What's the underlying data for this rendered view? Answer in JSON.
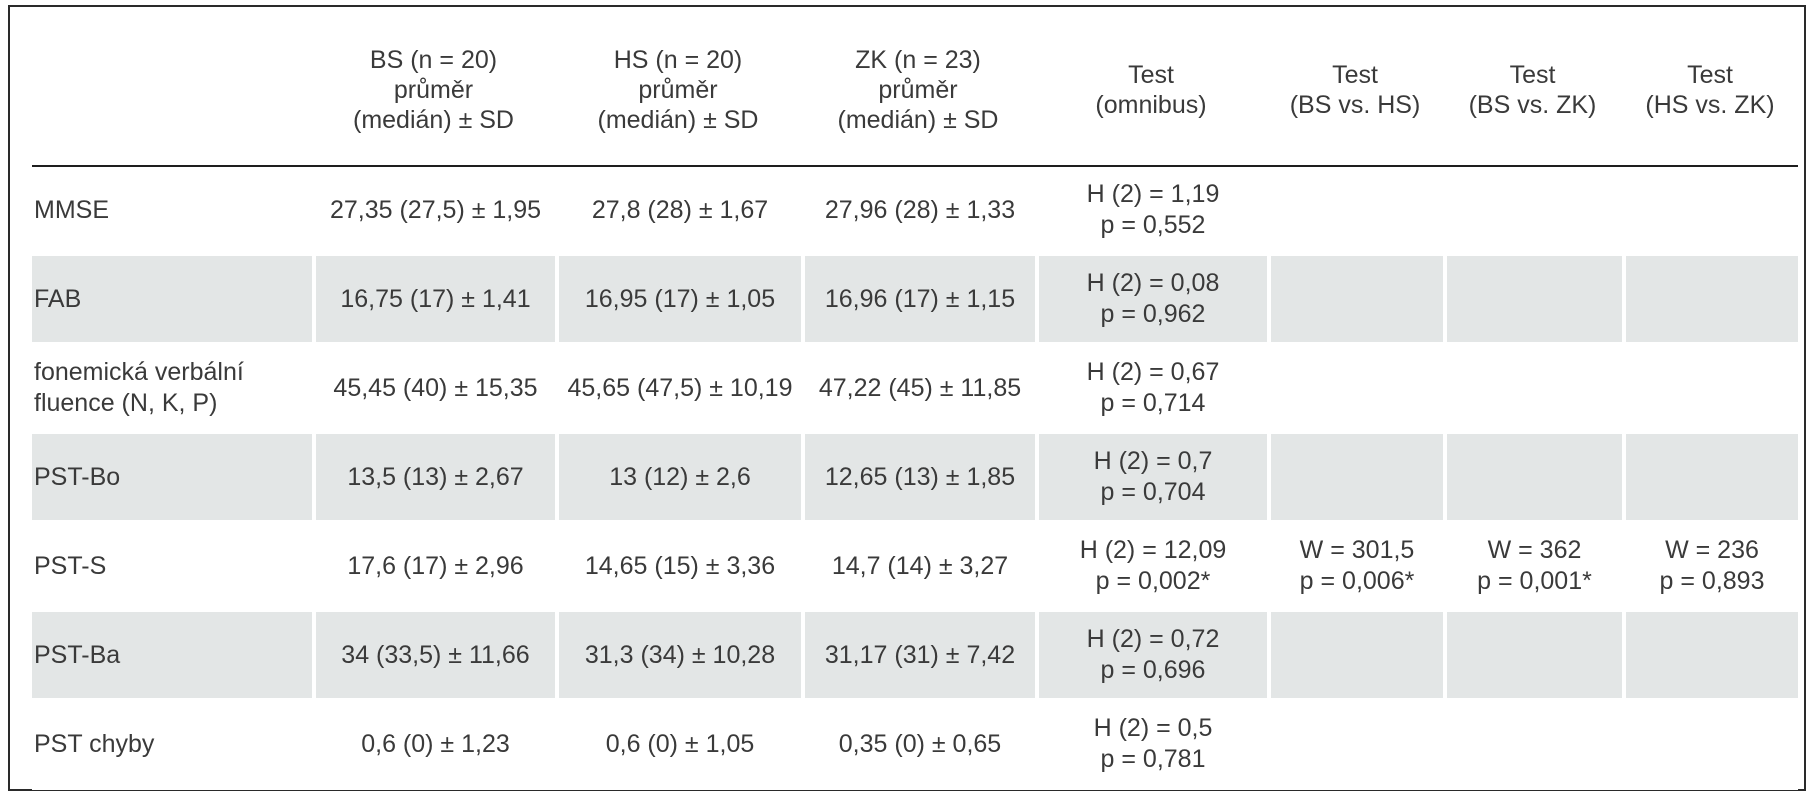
{
  "header": {
    "corner": "",
    "cols": [
      {
        "l1": "BS (n = 20)",
        "l2": "průměr",
        "l3": "(medián) ± SD"
      },
      {
        "l1": "HS (n = 20)",
        "l2": "průměr",
        "l3": "(medián) ± SD"
      },
      {
        "l1": "ZK (n = 23)",
        "l2": "průměr",
        "l3": "(medián) ± SD"
      },
      {
        "l1": "Test",
        "l2": "(omnibus)"
      },
      {
        "l1": "Test",
        "l2": "(BS vs. HS)"
      },
      {
        "l1": "Test",
        "l2": "(BS vs. ZK)"
      },
      {
        "l1": "Test",
        "l2": "(HS vs. ZK)"
      }
    ]
  },
  "rows": [
    {
      "label": "MMSE",
      "bs": "27,35 (27,5) ± 1,95",
      "hs": "27,8 (28) ± 1,67",
      "zk": "27,96 (28) ± 1,33",
      "omnibus": {
        "stat": "H (2) = 1,19",
        "p": "p = 0,552"
      },
      "bs_hs": {
        "stat": "",
        "p": ""
      },
      "bs_zk": {
        "stat": "",
        "p": ""
      },
      "hs_zk": {
        "stat": "",
        "p": ""
      }
    },
    {
      "label": "FAB",
      "bs": "16,75 (17) ± 1,41",
      "hs": "16,95 (17) ± 1,05",
      "zk": "16,96 (17) ± 1,15",
      "omnibus": {
        "stat": "H (2) = 0,08",
        "p": "p = 0,962"
      },
      "bs_hs": {
        "stat": "",
        "p": ""
      },
      "bs_zk": {
        "stat": "",
        "p": ""
      },
      "hs_zk": {
        "stat": "",
        "p": ""
      }
    },
    {
      "label": "fonemická verbální fluence (N, K, P)",
      "bs": "45,45 (40) ± 15,35",
      "hs": "45,65 (47,5) ± 10,19",
      "zk": "47,22 (45) ± 11,85",
      "omnibus": {
        "stat": "H (2) = 0,67",
        "p": "p = 0,714"
      },
      "bs_hs": {
        "stat": "",
        "p": ""
      },
      "bs_zk": {
        "stat": "",
        "p": ""
      },
      "hs_zk": {
        "stat": "",
        "p": ""
      }
    },
    {
      "label": "PST-Bo",
      "bs": "13,5 (13) ± 2,67",
      "hs": "13 (12) ± 2,6",
      "zk": "12,65 (13) ± 1,85",
      "omnibus": {
        "stat": "H (2) = 0,7",
        "p": "p = 0,704"
      },
      "bs_hs": {
        "stat": "",
        "p": ""
      },
      "bs_zk": {
        "stat": "",
        "p": ""
      },
      "hs_zk": {
        "stat": "",
        "p": ""
      }
    },
    {
      "label": "PST-S",
      "bs": "17,6 (17) ± 2,96",
      "hs": "14,65 (15) ± 3,36",
      "zk": "14,7 (14) ± 3,27",
      "omnibus": {
        "stat": "H (2) = 12,09",
        "p": "p = 0,002*"
      },
      "bs_hs": {
        "stat": "W = 301,5",
        "p": "p = 0,006*"
      },
      "bs_zk": {
        "stat": "W = 362",
        "p": "p = 0,001*"
      },
      "hs_zk": {
        "stat": "W = 236",
        "p": "p = 0,893"
      }
    },
    {
      "label": "PST-Ba",
      "bs": "34 (33,5) ± 11,66",
      "hs": "31,3 (34) ± 10,28",
      "zk": "31,17 (31) ± 7,42",
      "omnibus": {
        "stat": "H (2) = 0,72",
        "p": "p = 0,696"
      },
      "bs_hs": {
        "stat": "",
        "p": ""
      },
      "bs_zk": {
        "stat": "",
        "p": ""
      },
      "hs_zk": {
        "stat": "",
        "p": ""
      }
    },
    {
      "label": "PST chyby",
      "bs": "0,6 (0) ± 1,23",
      "hs": "0,6 (0) ± 1,05",
      "zk": "0,35 (0) ± 0,65",
      "omnibus": {
        "stat": "H (2) = 0,5",
        "p": "p = 0,781"
      },
      "bs_hs": {
        "stat": "",
        "p": ""
      },
      "bs_zk": {
        "stat": "",
        "p": ""
      },
      "hs_zk": {
        "stat": "",
        "p": ""
      }
    }
  ]
}
